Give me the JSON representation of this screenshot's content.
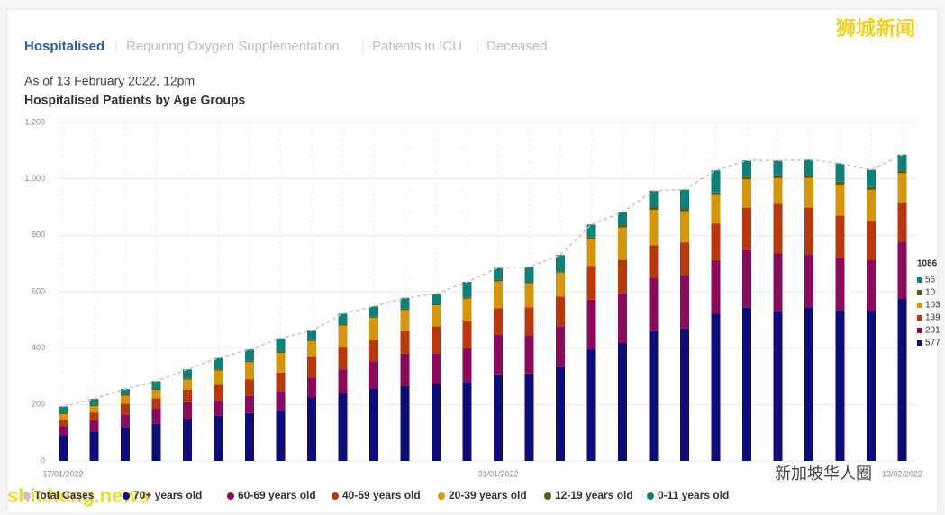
{
  "tabs": [
    "Hospitalised",
    "Requiring Oxygen Supplementation",
    "Patients in ICU",
    "Deceased"
  ],
  "watermarks": [
    "狮城新闻",
    "shicheng.news",
    "新加坡华人圈"
  ],
  "chart_data": {
    "type": "bar",
    "stacked": true,
    "subtitle": "As of 13 February 2022, 12pm",
    "title": "Hospitalised Patients by Age Groups",
    "categories": [
      "17/01/2022",
      null,
      null,
      null,
      null,
      null,
      null,
      null,
      null,
      null,
      null,
      null,
      null,
      null,
      "31/01/2022",
      null,
      null,
      null,
      null,
      null,
      null,
      null,
      null,
      null,
      null,
      null,
      null,
      "13/02/2022"
    ],
    "ylim": [
      0,
      1200
    ],
    "yticks": [
      0,
      200,
      400,
      600,
      800,
      {
        "value": 1000,
        "label": "1,000"
      },
      {
        "value": 1200,
        "label": "1,200"
      }
    ],
    "grid": true,
    "series": [
      {
        "name": "Total Cases",
        "type": "line",
        "color": "#c4c4c4",
        "values": [
          193,
          220,
          255,
          283,
          325,
          365,
          395,
          435,
          462,
          522,
          548,
          578,
          592,
          635,
          685,
          688,
          730,
          838,
          882,
          958,
          962,
          1030,
          1065,
          1065,
          1068,
          1055,
          1032,
          1086
        ]
      },
      {
        "name": "70+ years old",
        "color": "#0d0d78",
        "values": [
          92,
          104,
          120,
          132,
          150,
          160,
          170,
          180,
          225,
          240,
          258,
          265,
          272,
          280,
          307,
          310,
          333,
          397,
          418,
          460,
          470,
          522,
          543,
          532,
          545,
          535,
          533,
          577
        ]
      },
      {
        "name": "60-69 years old",
        "color": "#8a0b5e",
        "values": [
          32,
          40,
          45,
          55,
          58,
          55,
          60,
          68,
          70,
          85,
          95,
          115,
          110,
          120,
          140,
          135,
          145,
          175,
          175,
          190,
          190,
          190,
          205,
          205,
          188,
          185,
          180,
          201
        ]
      },
      {
        "name": "40-59 years old",
        "color": "#b8380e",
        "values": [
          22,
          28,
          38,
          35,
          45,
          55,
          60,
          65,
          75,
          80,
          75,
          80,
          95,
          95,
          95,
          100,
          105,
          120,
          120,
          115,
          115,
          130,
          150,
          175,
          165,
          150,
          138,
          139
        ]
      },
      {
        "name": "20-39 years old",
        "color": "#d5960f",
        "values": [
          20,
          22,
          28,
          30,
          35,
          50,
          60,
          70,
          55,
          75,
          80,
          75,
          75,
          80,
          95,
          85,
          85,
          95,
          115,
          125,
          110,
          100,
          100,
          90,
          105,
          110,
          110,
          103
        ]
      },
      {
        "name": "12-19 years old",
        "color": "#5b5c10",
        "values": [
          5,
          5,
          5,
          5,
          5,
          5,
          5,
          5,
          5,
          5,
          5,
          5,
          5,
          5,
          5,
          5,
          5,
          5,
          8,
          10,
          10,
          10,
          10,
          10,
          10,
          10,
          10,
          10
        ]
      },
      {
        "name": "0-11 years old",
        "color": "#10807b",
        "values": [
          22,
          21,
          19,
          26,
          32,
          40,
          40,
          47,
          32,
          37,
          35,
          38,
          35,
          55,
          43,
          53,
          57,
          46,
          46,
          58,
          67,
          78,
          57,
          53,
          55,
          65,
          61,
          56
        ]
      }
    ]
  }
}
